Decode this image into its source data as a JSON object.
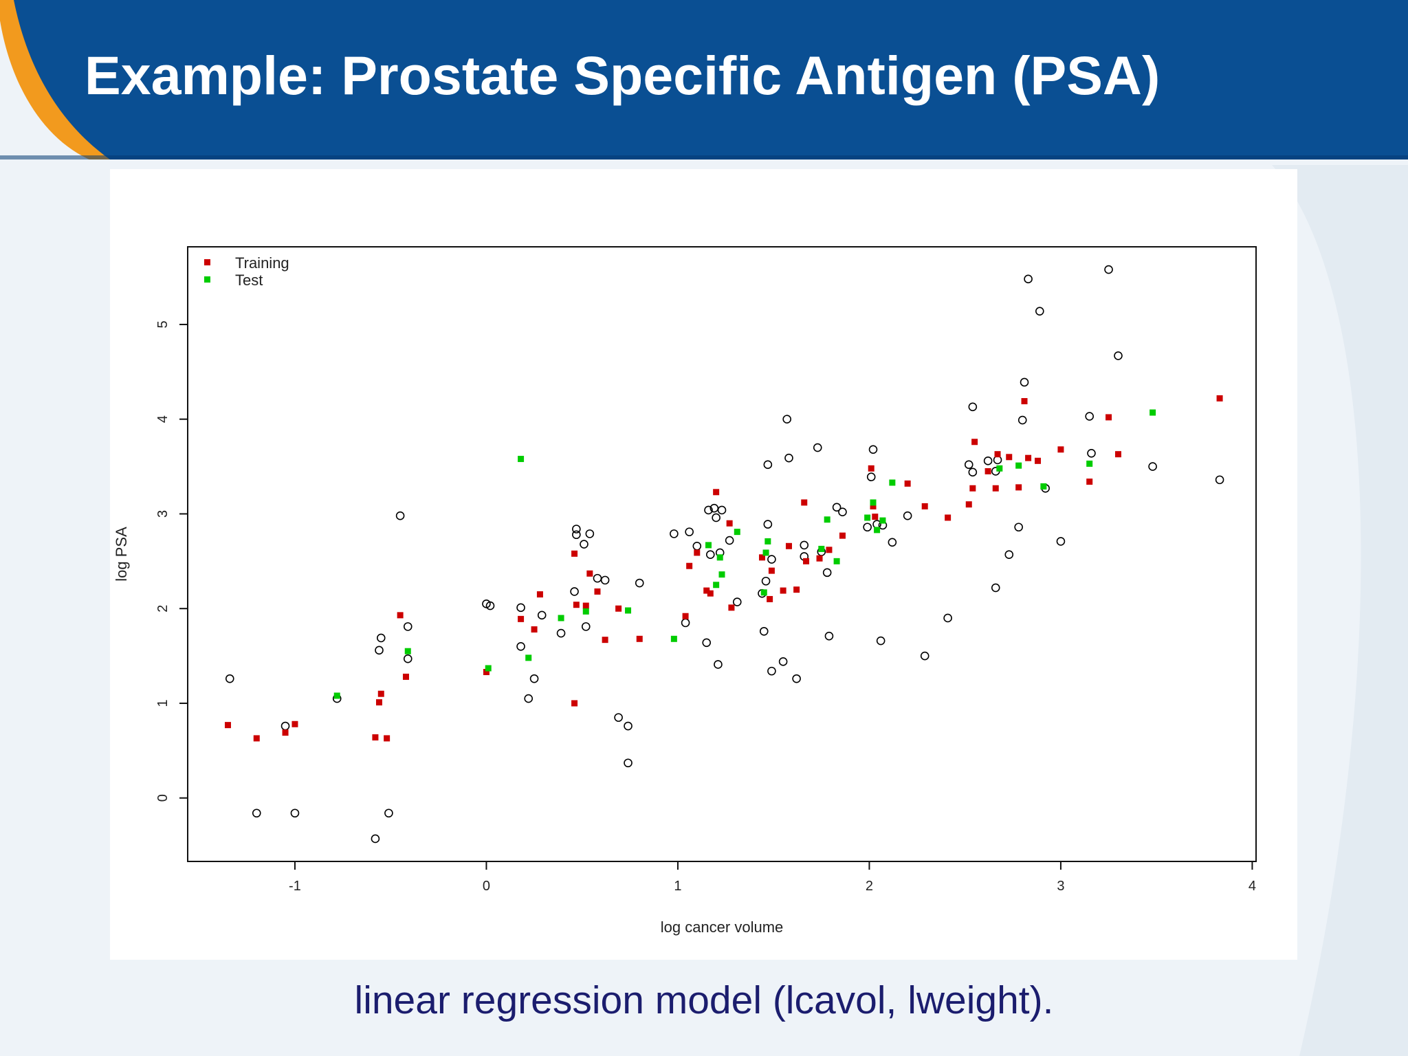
{
  "slide": {
    "title": "Example: Prostate Specific Antigen (PSA)",
    "caption": "linear regression model (lcavol, lweight).",
    "colors": {
      "header_blue": "#0a4f93",
      "header_dark": "#063a73",
      "accent_orange": "#f29a1e"
    }
  },
  "chart_data": {
    "type": "scatter",
    "xlabel": "log cancer volume",
    "ylabel": "log PSA",
    "xlim": [
      -1.56,
      4.02
    ],
    "ylim": [
      -0.67,
      5.82
    ],
    "xticks": [
      -1,
      0,
      1,
      2,
      3,
      4
    ],
    "yticks": [
      0,
      1,
      2,
      3,
      4,
      5
    ],
    "grid": false,
    "legend_position": "top-left",
    "legend": [
      {
        "name": "Training",
        "color": "#cc0000"
      },
      {
        "name": "Test",
        "color": "#00cc00"
      }
    ],
    "series": [
      {
        "name": "Training",
        "marker": "filled-square",
        "color": "#cc0000",
        "x": [
          -1.35,
          -1.2,
          -1.05,
          -1.0,
          -0.58,
          -0.56,
          -0.55,
          -0.52,
          -0.45,
          -0.42,
          0.0,
          0.18,
          0.25,
          0.28,
          0.46,
          0.46,
          0.47,
          0.52,
          0.54,
          0.58,
          0.62,
          0.69,
          0.8,
          1.04,
          1.06,
          1.1,
          1.15,
          1.17,
          1.2,
          1.27,
          1.28,
          1.44,
          1.48,
          1.49,
          1.55,
          1.58,
          1.62,
          1.66,
          1.67,
          1.74,
          1.79,
          1.86,
          2.01,
          2.02,
          2.03,
          2.2,
          2.29,
          2.41,
          2.52,
          2.54,
          2.55,
          2.62,
          2.66,
          2.67,
          2.73,
          2.78,
          2.81,
          2.83,
          2.88,
          3.0,
          3.15,
          3.25,
          3.3,
          3.83
        ],
        "y": [
          0.77,
          0.63,
          0.69,
          0.78,
          0.64,
          1.01,
          1.1,
          0.63,
          1.93,
          1.28,
          1.33,
          1.89,
          1.78,
          2.15,
          1.0,
          2.58,
          2.04,
          2.03,
          2.37,
          2.18,
          1.67,
          2.0,
          1.68,
          1.92,
          2.45,
          2.59,
          2.19,
          2.16,
          3.23,
          2.9,
          2.01,
          2.54,
          2.1,
          2.4,
          2.19,
          2.66,
          2.2,
          3.12,
          2.5,
          2.53,
          2.62,
          2.77,
          3.48,
          3.08,
          2.97,
          3.32,
          3.08,
          2.96,
          3.1,
          3.27,
          3.76,
          3.45,
          3.27,
          3.63,
          3.6,
          3.28,
          4.19,
          3.59,
          3.56,
          3.68,
          3.34,
          4.02,
          3.63,
          4.22
        ]
      },
      {
        "name": "Test",
        "marker": "filled-square",
        "color": "#00cc00",
        "x": [
          -0.78,
          -0.41,
          0.01,
          0.18,
          0.22,
          0.39,
          0.52,
          0.74,
          0.98,
          1.16,
          1.2,
          1.22,
          1.23,
          1.31,
          1.45,
          1.46,
          1.47,
          1.75,
          1.78,
          1.83,
          1.99,
          2.02,
          2.04,
          2.07,
          2.12,
          2.68,
          2.78,
          2.91,
          3.15,
          3.48
        ],
        "y": [
          1.08,
          1.55,
          1.37,
          3.58,
          1.48,
          1.9,
          1.97,
          1.98,
          1.68,
          2.67,
          2.25,
          2.54,
          2.36,
          2.81,
          2.17,
          2.59,
          2.71,
          2.63,
          2.94,
          2.5,
          2.96,
          3.12,
          2.83,
          2.93,
          3.33,
          3.48,
          3.51,
          3.29,
          3.53,
          4.07
        ]
      },
      {
        "name": "",
        "marker": "open-circle",
        "color": "#000000",
        "x": [
          -1.34,
          -1.2,
          -1.05,
          -1.0,
          -0.78,
          -0.58,
          -0.56,
          -0.55,
          -0.51,
          -0.45,
          -0.41,
          -0.41,
          0.0,
          0.02,
          0.18,
          0.18,
          0.22,
          0.25,
          0.29,
          0.39,
          0.46,
          0.47,
          0.47,
          0.51,
          0.52,
          0.54,
          0.58,
          0.62,
          0.69,
          0.74,
          0.74,
          0.8,
          0.98,
          1.04,
          1.06,
          1.1,
          1.15,
          1.16,
          1.17,
          1.19,
          1.2,
          1.21,
          1.22,
          1.23,
          1.27,
          1.31,
          1.44,
          1.45,
          1.46,
          1.47,
          1.47,
          1.49,
          1.49,
          1.55,
          1.57,
          1.58,
          1.62,
          1.66,
          1.66,
          1.73,
          1.75,
          1.78,
          1.79,
          1.83,
          1.86,
          1.99,
          2.01,
          2.02,
          2.04,
          2.06,
          2.07,
          2.12,
          2.2,
          2.29,
          2.41,
          2.52,
          2.54,
          2.54,
          2.62,
          2.66,
          2.66,
          2.67,
          2.73,
          2.78,
          2.8,
          2.81,
          2.83,
          2.89,
          2.92,
          3.0,
          3.15,
          3.16,
          3.25,
          3.3,
          3.48,
          3.83
        ],
        "y": [
          1.26,
          -0.16,
          0.76,
          -0.16,
          1.05,
          -0.43,
          1.56,
          1.69,
          -0.16,
          2.98,
          1.47,
          1.81,
          2.05,
          2.03,
          2.01,
          1.6,
          1.05,
          1.26,
          1.93,
          1.74,
          2.18,
          2.84,
          2.78,
          2.68,
          1.81,
          2.79,
          2.32,
          2.3,
          0.85,
          0.76,
          0.37,
          2.27,
          2.79,
          1.85,
          2.81,
          2.66,
          1.64,
          3.04,
          2.57,
          3.06,
          2.96,
          1.41,
          2.59,
          3.04,
          2.72,
          2.07,
          2.16,
          1.76,
          2.29,
          2.89,
          3.52,
          1.34,
          2.52,
          1.44,
          4.0,
          3.59,
          1.26,
          2.67,
          2.55,
          3.7,
          2.6,
          2.38,
          1.71,
          3.07,
          3.02,
          2.86,
          3.39,
          3.68,
          2.89,
          1.66,
          2.88,
          2.7,
          2.98,
          1.5,
          1.9,
          3.52,
          4.13,
          3.44,
          3.56,
          3.45,
          2.22,
          3.57,
          2.57,
          2.86,
          3.99,
          4.39,
          5.48,
          5.14,
          3.27,
          2.71,
          4.03,
          3.64,
          5.58,
          4.67,
          3.5,
          3.36
        ]
      }
    ]
  }
}
